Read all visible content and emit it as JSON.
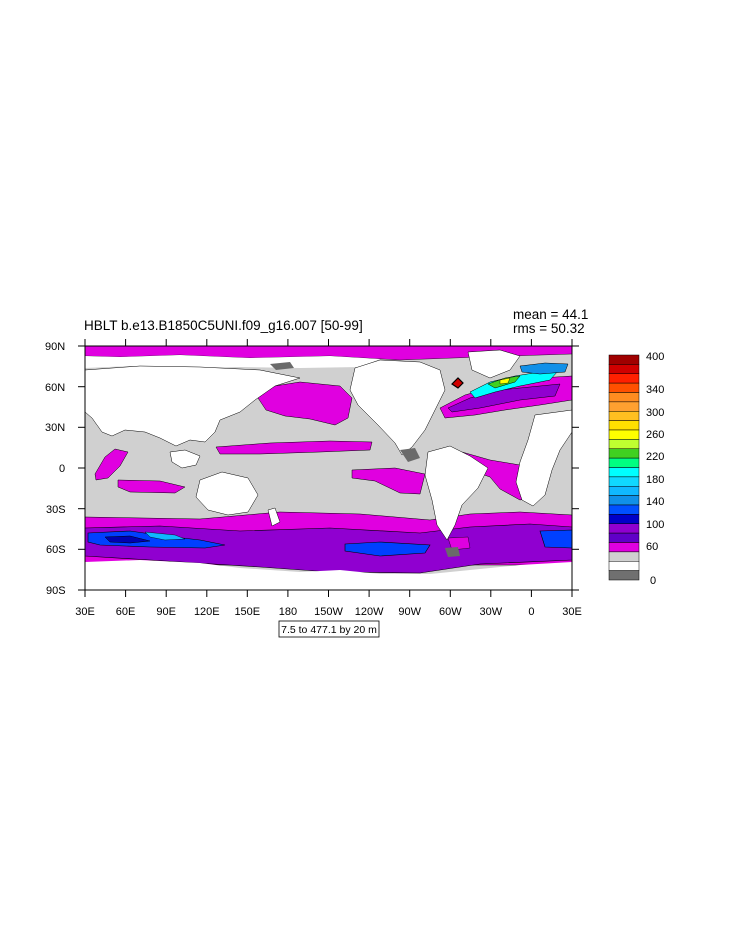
{
  "title": "HBLT b.e13.B1850C5UNI.f09_g16.007 [50-99]",
  "stats": {
    "mean": "mean = 44.1",
    "rms": "rms = 50.32"
  },
  "contour_info": "7.5 to 477.1 by 20 m",
  "axes": {
    "lat_ticks": [
      "90N",
      "60N",
      "30N",
      "0",
      "30S",
      "60S",
      "90S"
    ],
    "lon_ticks": [
      "30E",
      "60E",
      "90E",
      "120E",
      "150E",
      "180",
      "150W",
      "120W",
      "90W",
      "60W",
      "30W",
      "0",
      "30E"
    ]
  },
  "colorbar": {
    "labels": [
      "400",
      "340",
      "300",
      "260",
      "220",
      "180",
      "140",
      "100",
      "60",
      "0"
    ],
    "colors": [
      "#a00000",
      "#d00000",
      "#ff2000",
      "#ff5000",
      "#ff8c20",
      "#ffa030",
      "#ffc020",
      "#ffe000",
      "#ffff00",
      "#c0ff30",
      "#40d020",
      "#00ff80",
      "#00ffff",
      "#10d8ff",
      "#10b8ff",
      "#1090e8",
      "#0050ff",
      "#0000c8",
      "#9000d0",
      "#6000c8",
      "#e000e0",
      "#d0d0d0",
      "#ffffff",
      "#707070"
    ]
  },
  "colors": {
    "land": "#ffffff",
    "low": "#d0d0d0",
    "magenta": "#e000e0",
    "purple": "#9000d0",
    "blue": "#0040ff",
    "navy": "#0000b0",
    "gray_dark": "#6a6a6a"
  }
}
